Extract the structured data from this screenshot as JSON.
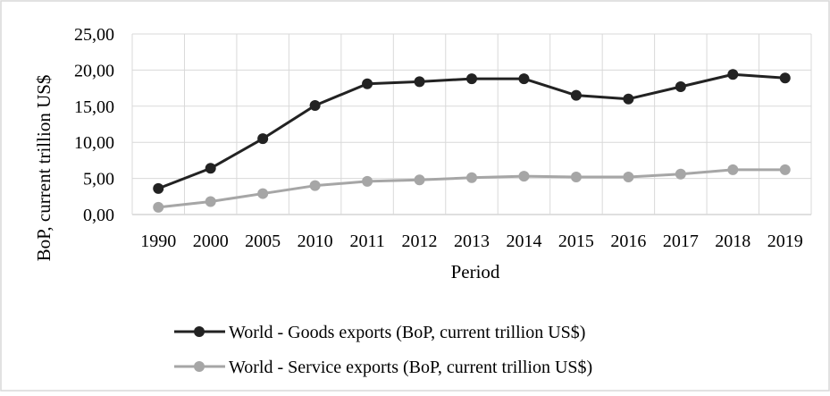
{
  "chart_data": {
    "type": "line",
    "categories": [
      "1990",
      "2000",
      "2005",
      "2010",
      "2011",
      "2012",
      "2013",
      "2014",
      "2015",
      "2016",
      "2017",
      "2018",
      "2019"
    ],
    "xlabel": "Period",
    "ylabel": "BoP, current trillion US$",
    "ylim": [
      0,
      25
    ],
    "yticks": [
      "0,00",
      "5,00",
      "10,00",
      "15,00",
      "20,00",
      "25,00"
    ],
    "grid": true,
    "legend_position": "bottom",
    "series": [
      {
        "name": "World - Goods exports (BoP, current trillion US$)",
        "color": "#222222",
        "values": [
          3.6,
          6.4,
          10.5,
          15.1,
          18.1,
          18.4,
          18.8,
          18.8,
          16.5,
          16.0,
          17.7,
          19.4,
          18.9
        ]
      },
      {
        "name": "World - Service exports (BoP, current trillion US$)",
        "color": "#a6a6a6",
        "values": [
          1.0,
          1.8,
          2.9,
          4.0,
          4.6,
          4.8,
          5.1,
          5.3,
          5.2,
          5.2,
          5.6,
          6.2,
          6.2
        ]
      }
    ]
  }
}
